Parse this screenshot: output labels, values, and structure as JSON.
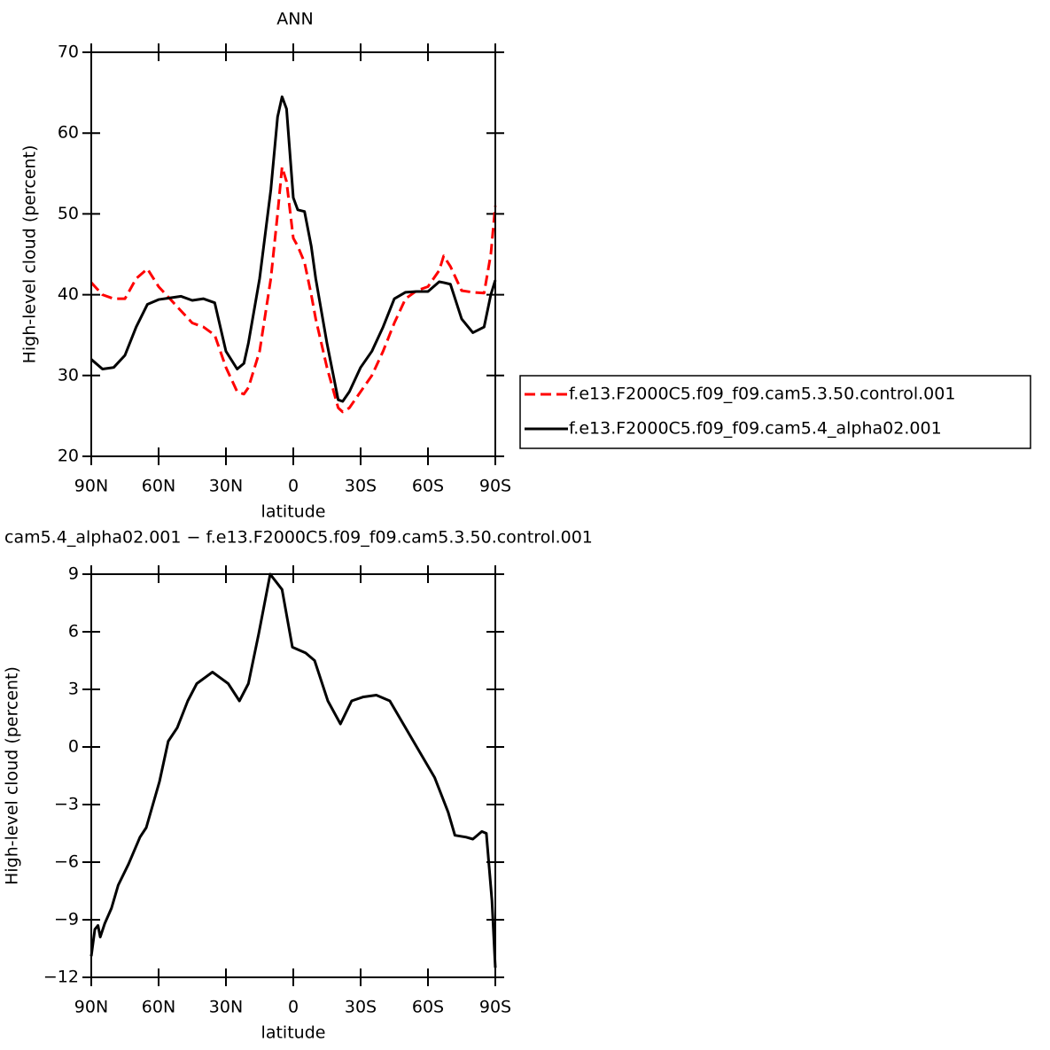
{
  "chart_data": [
    {
      "type": "line",
      "title": "ANN",
      "xlabel": "latitude",
      "ylabel": "High-level cloud (percent)",
      "x": [
        90,
        85,
        80,
        75,
        70,
        65,
        60,
        55,
        50,
        45,
        40,
        35,
        30,
        25,
        22,
        20,
        15,
        10,
        7,
        5,
        3,
        0,
        -2,
        -5,
        -8,
        -10,
        -15,
        -20,
        -22,
        -25,
        -30,
        -35,
        -40,
        -45,
        -50,
        -55,
        -60,
        -65,
        -67,
        -70,
        -75,
        -80,
        -85,
        -88,
        -90
      ],
      "series": [
        {
          "name": "f.e13.F2000C5.f09_f09.cam5.3.50.control.001",
          "color": "#ff0000",
          "dashed": true,
          "values": [
            41.5,
            40,
            39.5,
            39.5,
            42,
            43.2,
            41,
            39.5,
            38,
            36.5,
            36,
            35,
            31,
            28,
            27.7,
            28.5,
            33,
            42,
            50,
            55.8,
            54,
            47,
            46,
            44,
            40,
            37,
            31,
            26,
            25.5,
            26,
            28,
            30,
            33,
            36.5,
            39.5,
            40.5,
            41,
            43,
            44.8,
            43.5,
            40.5,
            40.3,
            40.2,
            45,
            51
          ]
        },
        {
          "name": "f.e13.F2000C5.f09_f09.cam5.4_alpha02.001",
          "color": "#000000",
          "dashed": false,
          "values": [
            32,
            30.8,
            31,
            32.5,
            36,
            38.8,
            39.4,
            39.6,
            39.8,
            39.3,
            39.5,
            39,
            33,
            30.8,
            31.5,
            34,
            42,
            53,
            62,
            64.5,
            63,
            52,
            50.5,
            50.3,
            46,
            42,
            34,
            27,
            26.8,
            28,
            31,
            33,
            36,
            39.5,
            40.3,
            40.4,
            40.4,
            41.6,
            41.5,
            41.3,
            37,
            35.3,
            36,
            40,
            41.8
          ]
        }
      ],
      "xlim": [
        90,
        -90
      ],
      "xticks": [
        {
          "value": 90,
          "label": "90N"
        },
        {
          "value": 60,
          "label": "60N"
        },
        {
          "value": 30,
          "label": "30N"
        },
        0,
        {
          "value": -30,
          "label": "30S"
        },
        {
          "value": -60,
          "label": "60S"
        },
        {
          "value": -90,
          "label": "90S"
        }
      ],
      "ylim": [
        20,
        70
      ],
      "yticks": [
        20,
        30,
        40,
        50,
        60,
        70
      ],
      "legend": "right"
    },
    {
      "type": "line",
      "title": "cam5.4_alpha02.001 − f.e13.F2000C5.f09_f09.cam5.3.50.control.001",
      "xlabel": "latitude",
      "ylabel": "High-level cloud (percent)",
      "x": [
        90,
        88.4,
        87,
        86,
        84,
        81,
        78,
        73.4,
        68.3,
        65.5,
        59.6,
        55.7,
        51.7,
        47,
        43,
        36,
        29,
        24,
        20,
        15.4,
        10.3,
        5,
        0.4,
        -5.5,
        -9.5,
        -15.4,
        -21,
        -26,
        -31,
        -37,
        -43,
        -49,
        -55,
        -63,
        -69,
        -72,
        -77,
        -80,
        -84,
        -86,
        -88.5,
        -90
      ],
      "values": [
        -10.9,
        -9.5,
        -9.3,
        -9.9,
        -9.2,
        -8.4,
        -7.2,
        -6.1,
        -4.7,
        -4.2,
        -1.8,
        0.3,
        1,
        2.4,
        3.3,
        3.9,
        3.3,
        2.4,
        3.3,
        5.9,
        9,
        8.2,
        5.2,
        4.9,
        4.5,
        2.4,
        1.2,
        2.4,
        2.6,
        2.7,
        2.4,
        1.2,
        0,
        -1.6,
        -3.4,
        -4.6,
        -4.7,
        -4.8,
        -4.4,
        -4.5,
        -8,
        -11.5
      ],
      "color": "#000000",
      "xlim": [
        90,
        -90
      ],
      "xticks": [
        {
          "value": 90,
          "label": "90N"
        },
        {
          "value": 60,
          "label": "60N"
        },
        {
          "value": 30,
          "label": "30N"
        },
        0,
        {
          "value": -30,
          "label": "30S"
        },
        {
          "value": -60,
          "label": "60S"
        },
        {
          "value": -90,
          "label": "90S"
        }
      ],
      "ylim": [
        -12,
        9
      ],
      "yticks": [
        {
          "value": -12,
          "label": "−12"
        },
        {
          "value": -9,
          "label": "−9"
        },
        {
          "value": -6,
          "label": "−6"
        },
        {
          "value": -3,
          "label": "−3"
        },
        0,
        3,
        6,
        9
      ]
    }
  ]
}
